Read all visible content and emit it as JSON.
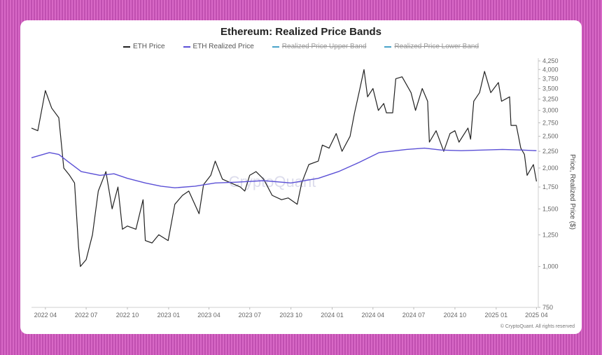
{
  "chart_data": {
    "type": "line",
    "title": "Ethereum: Realized Price Bands",
    "xlabel": "",
    "ylabel": "Price, Realized Price ($)",
    "y_scale": "log",
    "ylim": [
      750,
      4250
    ],
    "xlim": [
      "2022-03-01",
      "2025-04-05"
    ],
    "y_ticks": [
      750,
      1000,
      1250,
      1500,
      1750,
      2000,
      2250,
      2500,
      2750,
      3000,
      3250,
      3500,
      3750,
      4000,
      4250
    ],
    "y_tick_labels": [
      "750",
      "1,000",
      "1,250",
      "1,500",
      "1,750",
      "2,000",
      "2,250",
      "2,500",
      "2,750",
      "3,000",
      "3,250",
      "3,500",
      "3,750",
      "4,000",
      "4,250"
    ],
    "x_ticks": [
      "2022-04-01",
      "2022-07-01",
      "2022-10-01",
      "2023-01-01",
      "2023-04-01",
      "2023-07-01",
      "2023-10-01",
      "2024-01-01",
      "2024-04-01",
      "2024-07-01",
      "2024-10-01",
      "2025-01-01",
      "2025-04-01"
    ],
    "x_tick_labels": [
      "2022 04",
      "2022 07",
      "2022 10",
      "2023 01",
      "2023 04",
      "2023 07",
      "2023 10",
      "2024 01",
      "2024 04",
      "2024 07",
      "2024 10",
      "2025 01",
      "2025 04"
    ],
    "grid": false,
    "legend_position": "top-center",
    "series": [
      {
        "name": "ETH Price",
        "color": "#222222",
        "points": [
          [
            "2022-03-01",
            2650
          ],
          [
            "2022-03-15",
            2600
          ],
          [
            "2022-04-01",
            3450
          ],
          [
            "2022-04-15",
            3050
          ],
          [
            "2022-05-01",
            2850
          ],
          [
            "2022-05-12",
            2000
          ],
          [
            "2022-05-25",
            1900
          ],
          [
            "2022-06-05",
            1800
          ],
          [
            "2022-06-14",
            1150
          ],
          [
            "2022-06-18",
            1000
          ],
          [
            "2022-07-01",
            1050
          ],
          [
            "2022-07-15",
            1250
          ],
          [
            "2022-07-28",
            1700
          ],
          [
            "2022-08-14",
            1950
          ],
          [
            "2022-08-28",
            1500
          ],
          [
            "2022-09-10",
            1750
          ],
          [
            "2022-09-20",
            1300
          ],
          [
            "2022-10-01",
            1330
          ],
          [
            "2022-10-20",
            1300
          ],
          [
            "2022-11-05",
            1600
          ],
          [
            "2022-11-10",
            1200
          ],
          [
            "2022-11-25",
            1180
          ],
          [
            "2022-12-10",
            1250
          ],
          [
            "2022-12-31",
            1200
          ],
          [
            "2023-01-15",
            1550
          ],
          [
            "2023-02-01",
            1650
          ],
          [
            "2023-02-15",
            1700
          ],
          [
            "2023-03-10",
            1450
          ],
          [
            "2023-03-20",
            1780
          ],
          [
            "2023-04-05",
            1900
          ],
          [
            "2023-04-15",
            2100
          ],
          [
            "2023-05-01",
            1850
          ],
          [
            "2023-05-20",
            1800
          ],
          [
            "2023-06-10",
            1750
          ],
          [
            "2023-06-20",
            1700
          ],
          [
            "2023-07-01",
            1900
          ],
          [
            "2023-07-15",
            1950
          ],
          [
            "2023-08-01",
            1850
          ],
          [
            "2023-08-20",
            1650
          ],
          [
            "2023-09-10",
            1600
          ],
          [
            "2023-09-25",
            1620
          ],
          [
            "2023-10-15",
            1550
          ],
          [
            "2023-10-25",
            1800
          ],
          [
            "2023-11-10",
            2050
          ],
          [
            "2023-12-01",
            2100
          ],
          [
            "2023-12-10",
            2350
          ],
          [
            "2023-12-25",
            2300
          ],
          [
            "2024-01-10",
            2550
          ],
          [
            "2024-01-23",
            2250
          ],
          [
            "2024-02-10",
            2500
          ],
          [
            "2024-02-20",
            2950
          ],
          [
            "2024-03-01",
            3400
          ],
          [
            "2024-03-12",
            4000
          ],
          [
            "2024-03-20",
            3300
          ],
          [
            "2024-04-01",
            3500
          ],
          [
            "2024-04-13",
            3000
          ],
          [
            "2024-04-25",
            3150
          ],
          [
            "2024-05-01",
            2950
          ],
          [
            "2024-05-15",
            2950
          ],
          [
            "2024-05-22",
            3750
          ],
          [
            "2024-06-05",
            3800
          ],
          [
            "2024-06-25",
            3400
          ],
          [
            "2024-07-05",
            3000
          ],
          [
            "2024-07-20",
            3500
          ],
          [
            "2024-08-01",
            3200
          ],
          [
            "2024-08-05",
            2400
          ],
          [
            "2024-08-20",
            2600
          ],
          [
            "2024-09-06",
            2250
          ],
          [
            "2024-09-20",
            2550
          ],
          [
            "2024-10-01",
            2600
          ],
          [
            "2024-10-10",
            2400
          ],
          [
            "2024-10-30",
            2650
          ],
          [
            "2024-11-05",
            2450
          ],
          [
            "2024-11-12",
            3200
          ],
          [
            "2024-11-25",
            3400
          ],
          [
            "2024-12-06",
            3950
          ],
          [
            "2024-12-20",
            3400
          ],
          [
            "2025-01-06",
            3650
          ],
          [
            "2025-01-13",
            3200
          ],
          [
            "2025-01-31",
            3300
          ],
          [
            "2025-02-03",
            2700
          ],
          [
            "2025-02-15",
            2700
          ],
          [
            "2025-02-25",
            2300
          ],
          [
            "2025-03-05",
            2200
          ],
          [
            "2025-03-11",
            1900
          ],
          [
            "2025-03-25",
            2050
          ],
          [
            "2025-04-01",
            1820
          ]
        ]
      },
      {
        "name": "ETH Realized Price",
        "color": "#5b50d6",
        "points": [
          [
            "2022-03-01",
            2150
          ],
          [
            "2022-04-10",
            2230
          ],
          [
            "2022-05-01",
            2200
          ],
          [
            "2022-05-20",
            2100
          ],
          [
            "2022-06-20",
            1950
          ],
          [
            "2022-08-01",
            1900
          ],
          [
            "2022-09-01",
            1920
          ],
          [
            "2022-10-01",
            1860
          ],
          [
            "2022-11-10",
            1800
          ],
          [
            "2022-12-15",
            1760
          ],
          [
            "2023-01-15",
            1740
          ],
          [
            "2023-03-01",
            1760
          ],
          [
            "2023-04-15",
            1800
          ],
          [
            "2023-06-01",
            1810
          ],
          [
            "2023-08-01",
            1830
          ],
          [
            "2023-10-01",
            1800
          ],
          [
            "2023-12-01",
            1860
          ],
          [
            "2024-01-15",
            1950
          ],
          [
            "2024-03-01",
            2080
          ],
          [
            "2024-04-15",
            2230
          ],
          [
            "2024-06-15",
            2280
          ],
          [
            "2024-07-25",
            2300
          ],
          [
            "2024-09-01",
            2270
          ],
          [
            "2024-10-15",
            2260
          ],
          [
            "2024-12-01",
            2270
          ],
          [
            "2025-01-15",
            2280
          ],
          [
            "2025-03-01",
            2270
          ],
          [
            "2025-04-01",
            2260
          ]
        ]
      },
      {
        "name": "Realized Price Upper Band",
        "color": "#4aa3c9",
        "hidden": true
      },
      {
        "name": "Realized Price Lower Band",
        "color": "#4aa3c9",
        "hidden": true
      }
    ]
  },
  "watermark": "CryptoQuant",
  "copyright": "© CryptoQuant. All rights reserved"
}
